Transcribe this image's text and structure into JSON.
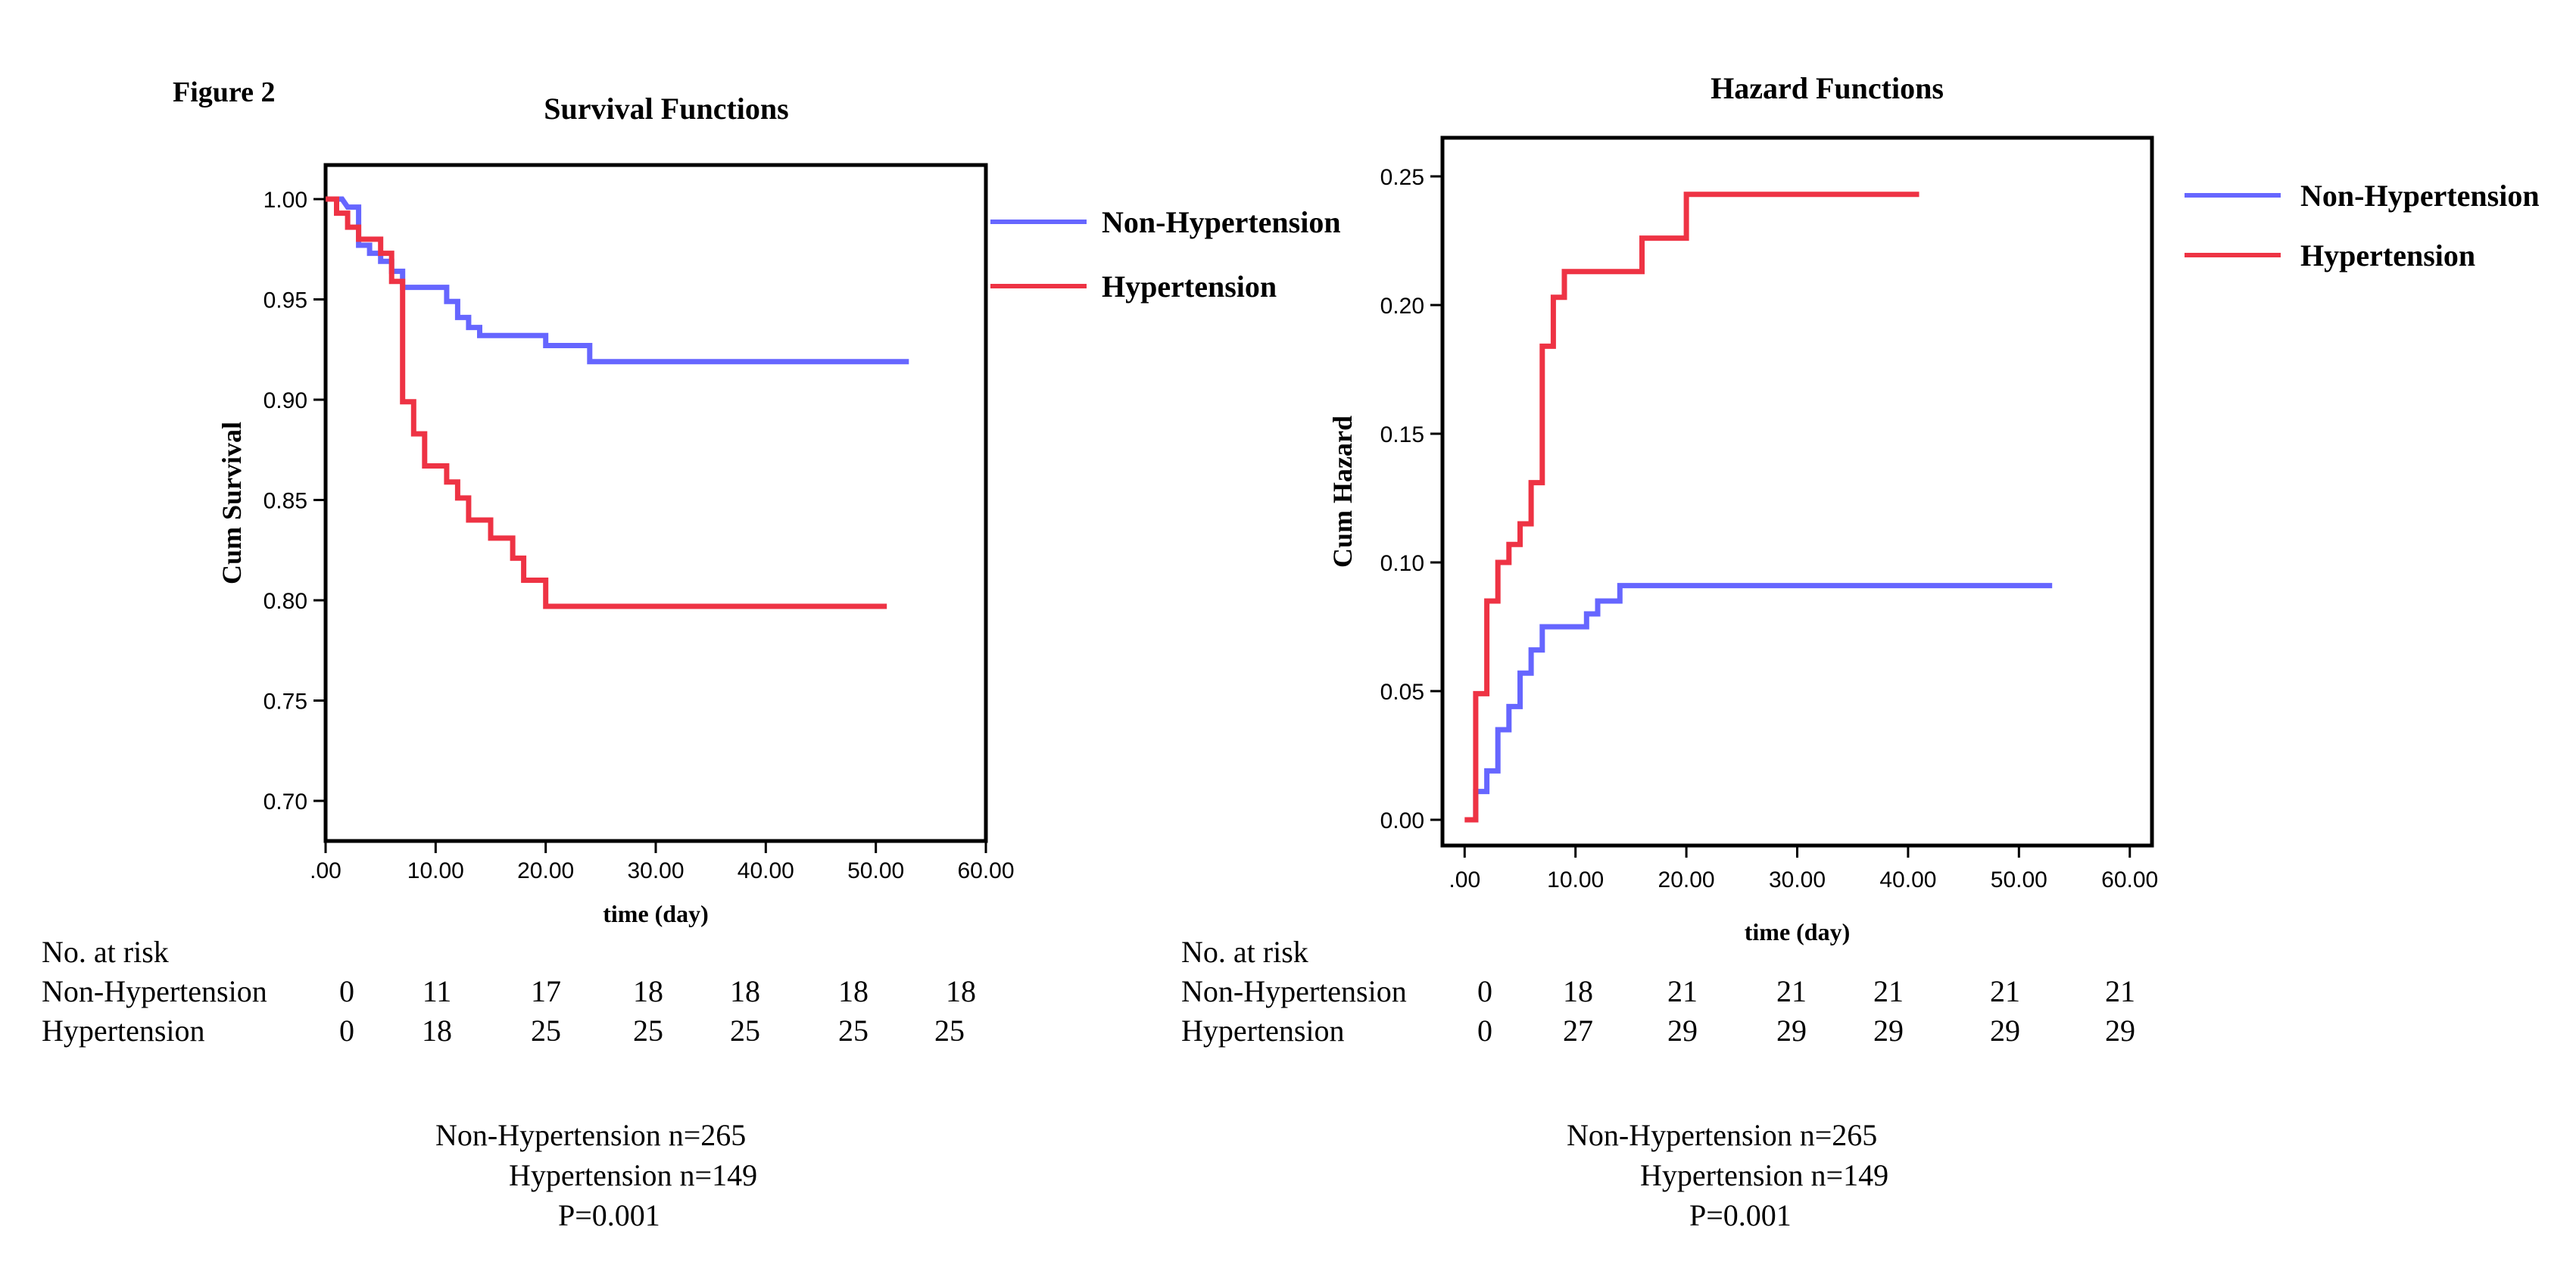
{
  "figure_label": "Figure 2",
  "chart_data": [
    {
      "type": "line",
      "title": "Survival Functions",
      "xlabel": "time (day)",
      "ylabel": "Cum Survival",
      "xlim": [
        0,
        60
      ],
      "ylim": [
        0.68,
        1.017
      ],
      "x_ticks": [
        ".00",
        "10.00",
        "20.00",
        "30.00",
        "40.00",
        "50.00",
        "60.00"
      ],
      "y_ticks": [
        "0.70",
        "0.75",
        "0.80",
        "0.85",
        "0.90",
        "0.95",
        "1.00"
      ],
      "y_tick_values": [
        0.7,
        0.75,
        0.8,
        0.85,
        0.9,
        0.95,
        1.0
      ],
      "legend_position": "right",
      "series": [
        {
          "name": "Non-Hypertension",
          "color": "#6666ff",
          "points": [
            [
              0,
              1.0
            ],
            [
              1.5,
              1.0
            ],
            [
              2,
              0.996
            ],
            [
              3,
              0.996
            ],
            [
              3,
              0.977
            ],
            [
              4,
              0.977
            ],
            [
              4,
              0.973
            ],
            [
              5,
              0.973
            ],
            [
              5,
              0.969
            ],
            [
              6,
              0.969
            ],
            [
              6,
              0.964
            ],
            [
              7,
              0.964
            ],
            [
              7,
              0.956
            ],
            [
              11,
              0.956
            ],
            [
              11,
              0.949
            ],
            [
              12,
              0.949
            ],
            [
              12,
              0.941
            ],
            [
              13,
              0.941
            ],
            [
              13,
              0.936
            ],
            [
              14,
              0.936
            ],
            [
              14,
              0.932
            ],
            [
              20,
              0.932
            ],
            [
              20,
              0.927
            ],
            [
              24,
              0.927
            ],
            [
              24,
              0.919
            ],
            [
              53,
              0.919
            ]
          ]
        },
        {
          "name": "Hypertension",
          "color": "#ee3344",
          "points": [
            [
              0,
              1.0
            ],
            [
              1,
              1.0
            ],
            [
              1,
              0.993
            ],
            [
              2,
              0.993
            ],
            [
              2,
              0.986
            ],
            [
              3,
              0.986
            ],
            [
              3,
              0.98
            ],
            [
              5,
              0.98
            ],
            [
              5,
              0.973
            ],
            [
              6,
              0.973
            ],
            [
              6,
              0.959
            ],
            [
              7,
              0.959
            ],
            [
              7,
              0.899
            ],
            [
              8,
              0.899
            ],
            [
              8,
              0.883
            ],
            [
              9,
              0.883
            ],
            [
              9,
              0.867
            ],
            [
              11,
              0.867
            ],
            [
              11,
              0.859
            ],
            [
              12,
              0.859
            ],
            [
              12,
              0.851
            ],
            [
              13,
              0.851
            ],
            [
              13,
              0.84
            ],
            [
              15,
              0.84
            ],
            [
              15,
              0.831
            ],
            [
              17,
              0.831
            ],
            [
              17,
              0.821
            ],
            [
              18,
              0.821
            ],
            [
              18,
              0.81
            ],
            [
              20,
              0.81
            ],
            [
              20,
              0.797
            ],
            [
              51,
              0.797
            ]
          ]
        }
      ]
    },
    {
      "type": "line",
      "title": "Hazard Functions",
      "xlabel": "time (day)",
      "ylabel": "Cum Hazard",
      "xlim": [
        -2,
        62
      ],
      "ylim": [
        -0.01,
        0.265
      ],
      "x_ticks": [
        ".00",
        "10.00",
        "20.00",
        "30.00",
        "40.00",
        "50.00",
        "60.00"
      ],
      "y_ticks": [
        "0.00",
        "0.05",
        "0.10",
        "0.15",
        "0.20",
        "0.25"
      ],
      "y_tick_values": [
        0.0,
        0.05,
        0.1,
        0.15,
        0.2,
        0.25
      ],
      "legend_position": "right",
      "series": [
        {
          "name": "Non-Hypertension",
          "color": "#6666ff",
          "points": [
            [
              0.5,
              0
            ],
            [
              1,
              0
            ],
            [
              1,
              0.011
            ],
            [
              2,
              0.011
            ],
            [
              2,
              0.019
            ],
            [
              3,
              0.019
            ],
            [
              3,
              0.035
            ],
            [
              4,
              0.035
            ],
            [
              4,
              0.044
            ],
            [
              5,
              0.044
            ],
            [
              5,
              0.057
            ],
            [
              6,
              0.057
            ],
            [
              6,
              0.066
            ],
            [
              7,
              0.066
            ],
            [
              7,
              0.075
            ],
            [
              11,
              0.075
            ],
            [
              11,
              0.08
            ],
            [
              12,
              0.08
            ],
            [
              12,
              0.085
            ],
            [
              14,
              0.085
            ],
            [
              14,
              0.091
            ],
            [
              53,
              0.091
            ]
          ]
        },
        {
          "name": "Hypertension",
          "color": "#ee3344",
          "points": [
            [
              0,
              0
            ],
            [
              1,
              0
            ],
            [
              1,
              0.049
            ],
            [
              2,
              0.049
            ],
            [
              2,
              0.085
            ],
            [
              3,
              0.085
            ],
            [
              3,
              0.1
            ],
            [
              4,
              0.1
            ],
            [
              4,
              0.107
            ],
            [
              5,
              0.107
            ],
            [
              5,
              0.115
            ],
            [
              6,
              0.115
            ],
            [
              6,
              0.131
            ],
            [
              7,
              0.131
            ],
            [
              7,
              0.184
            ],
            [
              8,
              0.184
            ],
            [
              8,
              0.203
            ],
            [
              9,
              0.203
            ],
            [
              9,
              0.213
            ],
            [
              16,
              0.213
            ],
            [
              16,
              0.226
            ],
            [
              20,
              0.226
            ],
            [
              20,
              0.243
            ],
            [
              41,
              0.243
            ]
          ]
        }
      ]
    }
  ],
  "risk_tables": [
    {
      "heading": "No. at risk",
      "rows": [
        {
          "label": "Non-Hypertension",
          "values": [
            "0",
            "11",
            "17",
            "18",
            "18",
            "18",
            "18"
          ]
        },
        {
          "label": "Hypertension",
          "values": [
            "0",
            "18",
            "25",
            "25",
            "25",
            "25",
            "25"
          ]
        }
      ]
    },
    {
      "heading": "No. at risk",
      "rows": [
        {
          "label": "Non-Hypertension",
          "values": [
            "0",
            "18",
            "21",
            "21",
            "21",
            "21",
            "21"
          ]
        },
        {
          "label": "Hypertension",
          "values": [
            "0",
            "27",
            "29",
            "29",
            "29",
            "29",
            "29"
          ]
        }
      ]
    }
  ],
  "stats": [
    {
      "line1": "Non-Hypertension n=265",
      "line2": "Hypertension n=149",
      "line3": "P=0.001"
    },
    {
      "line1": "Non-Hypertension n=265",
      "line2": "Hypertension n=149",
      "line3": "P=0.001"
    }
  ]
}
